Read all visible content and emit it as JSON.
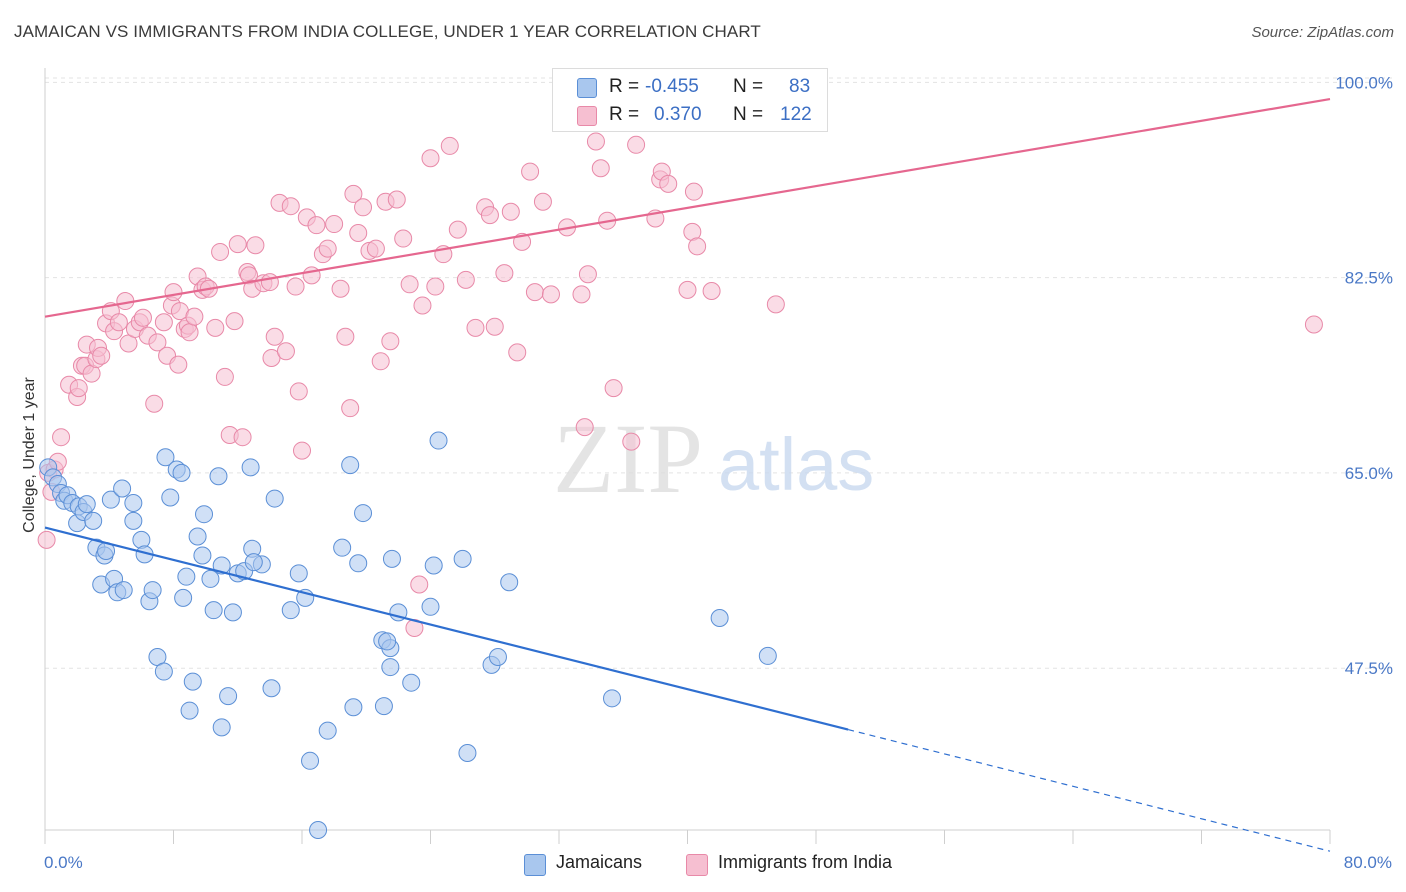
{
  "title": "JAMAICAN VS IMMIGRANTS FROM INDIA COLLEGE, UNDER 1 YEAR CORRELATION CHART",
  "source": "Source: ZipAtlas.com",
  "watermark": {
    "zip": "ZIP",
    "atlas": "atlas"
  },
  "colors": {
    "blue_fill": "#a9c7ee",
    "blue_stroke": "#5b8fd6",
    "blue_line": "#2f6fd0",
    "pink_fill": "#f6bfd1",
    "pink_stroke": "#e889a8",
    "pink_line": "#e5678f",
    "grid": "#e3e3e3",
    "axis_text": "#4a78c6"
  },
  "legend": {
    "rows": [
      {
        "r_label": "R =",
        "r_value": "-0.455",
        "n_label": "N =",
        "n_value": "83"
      },
      {
        "r_label": "R =",
        "r_value": "0.370",
        "n_label": "N =",
        "n_value": "122"
      }
    ]
  },
  "bottom_legend": [
    "Jamaicans",
    "Immigrants from India"
  ],
  "chart_data": {
    "type": "scatter",
    "title": "JAMAICAN VS IMMIGRANTS FROM INDIA COLLEGE, UNDER 1 YEAR CORRELATION CHART",
    "xlabel": "",
    "ylabel": "College, Under 1 year",
    "xlim": [
      0,
      80
    ],
    "ylim": [
      33,
      102
    ],
    "x_ticks": [
      "0.0%",
      "80.0%"
    ],
    "y_ticks": [
      {
        "value": 100,
        "label": "100.0%"
      },
      {
        "value": 82.5,
        "label": "82.5%"
      },
      {
        "value": 65,
        "label": "65.0%"
      },
      {
        "value": 47.5,
        "label": "47.5%"
      }
    ],
    "grid": true,
    "series": [
      {
        "name": "Jamaicans",
        "trend": {
          "x1": 0,
          "y1": 60.1,
          "x2": 50,
          "y2": 42.0,
          "dashed_to_x": 80,
          "dashed_to_y": 31.1
        },
        "points": [
          [
            0.2,
            65.5
          ],
          [
            0.5,
            64.6
          ],
          [
            0.8,
            64.0
          ],
          [
            1.0,
            63.2
          ],
          [
            1.2,
            62.5
          ],
          [
            1.4,
            63.0
          ],
          [
            1.7,
            62.3
          ],
          [
            2.0,
            60.5
          ],
          [
            2.1,
            62.0
          ],
          [
            2.4,
            61.5
          ],
          [
            2.6,
            62.2
          ],
          [
            3.0,
            60.7
          ],
          [
            3.2,
            58.3
          ],
          [
            3.5,
            55.0
          ],
          [
            3.7,
            57.6
          ],
          [
            3.8,
            58.0
          ],
          [
            4.1,
            62.6
          ],
          [
            4.3,
            55.5
          ],
          [
            4.5,
            54.3
          ],
          [
            4.8,
            63.6
          ],
          [
            4.9,
            54.5
          ],
          [
            5.5,
            62.3
          ],
          [
            5.5,
            60.7
          ],
          [
            6.0,
            59.0
          ],
          [
            6.2,
            57.7
          ],
          [
            6.5,
            53.5
          ],
          [
            6.7,
            54.5
          ],
          [
            7.0,
            48.5
          ],
          [
            7.4,
            47.2
          ],
          [
            7.5,
            66.4
          ],
          [
            7.8,
            62.8
          ],
          [
            8.2,
            65.3
          ],
          [
            8.5,
            65.0
          ],
          [
            8.6,
            53.8
          ],
          [
            8.8,
            55.7
          ],
          [
            9.0,
            43.7
          ],
          [
            9.2,
            46.3
          ],
          [
            9.5,
            59.3
          ],
          [
            9.8,
            57.6
          ],
          [
            9.9,
            61.3
          ],
          [
            10.5,
            52.7
          ],
          [
            10.3,
            55.5
          ],
          [
            10.8,
            64.7
          ],
          [
            11.0,
            56.7
          ],
          [
            11.0,
            42.2
          ],
          [
            11.4,
            45.0
          ],
          [
            11.7,
            52.5
          ],
          [
            12.0,
            56.0
          ],
          [
            12.4,
            56.2
          ],
          [
            12.8,
            65.5
          ],
          [
            12.9,
            58.2
          ],
          [
            13.5,
            56.8
          ],
          [
            13.0,
            57.0
          ],
          [
            14.1,
            45.7
          ],
          [
            14.3,
            62.7
          ],
          [
            15.3,
            52.7
          ],
          [
            15.8,
            56.0
          ],
          [
            16.2,
            53.8
          ],
          [
            16.5,
            39.2
          ],
          [
            17.0,
            33.0
          ],
          [
            17.6,
            41.9
          ],
          [
            18.5,
            58.3
          ],
          [
            19.0,
            65.7
          ],
          [
            19.5,
            56.9
          ],
          [
            19.8,
            61.4
          ],
          [
            19.2,
            44.0
          ],
          [
            21.0,
            50.0
          ],
          [
            21.5,
            47.6
          ],
          [
            21.6,
            57.3
          ],
          [
            21.5,
            49.3
          ],
          [
            22.0,
            52.5
          ],
          [
            21.1,
            44.1
          ],
          [
            21.3,
            49.9
          ],
          [
            22.8,
            46.2
          ],
          [
            24.0,
            53.0
          ],
          [
            24.2,
            56.7
          ],
          [
            24.5,
            67.9
          ],
          [
            26.0,
            57.3
          ],
          [
            26.3,
            39.9
          ],
          [
            27.8,
            47.8
          ],
          [
            28.2,
            48.5
          ],
          [
            28.9,
            55.2
          ],
          [
            35.3,
            44.8
          ],
          [
            42.0,
            52.0
          ],
          [
            45.0,
            48.6
          ]
        ]
      },
      {
        "name": "Immigrants from India",
        "trend": {
          "x1": 0,
          "y1": 79.0,
          "x2": 80,
          "y2": 98.5
        },
        "points": [
          [
            0.1,
            59.0
          ],
          [
            0.2,
            65.0
          ],
          [
            0.4,
            63.3
          ],
          [
            0.6,
            65.3
          ],
          [
            0.8,
            66.0
          ],
          [
            1.0,
            68.2
          ],
          [
            1.5,
            72.9
          ],
          [
            2.0,
            71.8
          ],
          [
            2.1,
            72.6
          ],
          [
            2.3,
            74.6
          ],
          [
            2.5,
            74.6
          ],
          [
            2.6,
            76.5
          ],
          [
            2.9,
            73.9
          ],
          [
            3.2,
            75.2
          ],
          [
            3.3,
            76.2
          ],
          [
            3.5,
            75.5
          ],
          [
            3.8,
            78.4
          ],
          [
            4.1,
            79.5
          ],
          [
            4.3,
            77.7
          ],
          [
            4.6,
            78.5
          ],
          [
            5.0,
            80.4
          ],
          [
            5.2,
            76.6
          ],
          [
            5.6,
            77.9
          ],
          [
            5.9,
            78.5
          ],
          [
            6.1,
            78.9
          ],
          [
            6.4,
            77.3
          ],
          [
            6.8,
            71.2
          ],
          [
            7.0,
            76.7
          ],
          [
            7.4,
            78.5
          ],
          [
            7.6,
            75.5
          ],
          [
            7.9,
            80.0
          ],
          [
            8.0,
            81.2
          ],
          [
            8.3,
            74.7
          ],
          [
            8.4,
            79.5
          ],
          [
            8.7,
            77.9
          ],
          [
            8.9,
            78.2
          ],
          [
            9.0,
            77.6
          ],
          [
            9.3,
            79.0
          ],
          [
            9.5,
            82.6
          ],
          [
            9.8,
            81.4
          ],
          [
            10.0,
            81.7
          ],
          [
            10.2,
            81.5
          ],
          [
            10.6,
            78.0
          ],
          [
            10.9,
            84.8
          ],
          [
            11.2,
            73.6
          ],
          [
            11.5,
            68.4
          ],
          [
            11.8,
            78.6
          ],
          [
            12.0,
            85.5
          ],
          [
            12.3,
            68.2
          ],
          [
            12.6,
            83.0
          ],
          [
            12.7,
            82.7
          ],
          [
            12.9,
            81.5
          ],
          [
            13.1,
            85.4
          ],
          [
            13.6,
            82.0
          ],
          [
            14.0,
            82.1
          ],
          [
            14.1,
            75.3
          ],
          [
            14.3,
            77.2
          ],
          [
            14.6,
            89.2
          ],
          [
            15.0,
            75.9
          ],
          [
            15.3,
            88.9
          ],
          [
            15.6,
            81.7
          ],
          [
            15.8,
            72.3
          ],
          [
            16.0,
            67.0
          ],
          [
            16.3,
            87.9
          ],
          [
            16.6,
            82.7
          ],
          [
            16.9,
            87.2
          ],
          [
            17.3,
            84.6
          ],
          [
            17.6,
            85.1
          ],
          [
            18.0,
            87.3
          ],
          [
            18.4,
            81.5
          ],
          [
            18.7,
            77.2
          ],
          [
            19.0,
            70.8
          ],
          [
            19.2,
            90.0
          ],
          [
            19.5,
            86.5
          ],
          [
            19.8,
            88.8
          ],
          [
            20.2,
            84.9
          ],
          [
            20.6,
            85.1
          ],
          [
            20.9,
            75.0
          ],
          [
            21.2,
            89.3
          ],
          [
            21.5,
            76.8
          ],
          [
            21.9,
            89.5
          ],
          [
            22.3,
            86.0
          ],
          [
            22.7,
            81.9
          ],
          [
            23.0,
            51.1
          ],
          [
            23.3,
            55.0
          ],
          [
            23.5,
            80.0
          ],
          [
            24.0,
            93.2
          ],
          [
            24.3,
            81.7
          ],
          [
            24.8,
            84.6
          ],
          [
            25.2,
            94.3
          ],
          [
            25.7,
            86.8
          ],
          [
            26.2,
            82.3
          ],
          [
            26.8,
            78.0
          ],
          [
            27.4,
            88.8
          ],
          [
            27.7,
            88.1
          ],
          [
            28.0,
            78.1
          ],
          [
            28.6,
            82.9
          ],
          [
            29.0,
            88.4
          ],
          [
            29.4,
            75.8
          ],
          [
            29.7,
            85.7
          ],
          [
            30.2,
            92.0
          ],
          [
            30.5,
            81.2
          ],
          [
            31.0,
            89.3
          ],
          [
            31.5,
            81.0
          ],
          [
            32.5,
            87.0
          ],
          [
            33.4,
            81.0
          ],
          [
            33.6,
            69.1
          ],
          [
            33.8,
            82.8
          ],
          [
            34.3,
            94.7
          ],
          [
            34.6,
            92.3
          ],
          [
            35.0,
            87.6
          ],
          [
            35.4,
            72.6
          ],
          [
            36.8,
            94.4
          ],
          [
            36.5,
            67.8
          ],
          [
            38.0,
            87.8
          ],
          [
            38.3,
            91.3
          ],
          [
            38.4,
            92.0
          ],
          [
            38.8,
            90.9
          ],
          [
            40.0,
            81.4
          ],
          [
            40.3,
            86.6
          ],
          [
            40.4,
            90.2
          ],
          [
            40.6,
            85.3
          ],
          [
            41.5,
            81.3
          ],
          [
            45.5,
            80.1
          ],
          [
            79.0,
            78.3
          ]
        ]
      }
    ]
  }
}
